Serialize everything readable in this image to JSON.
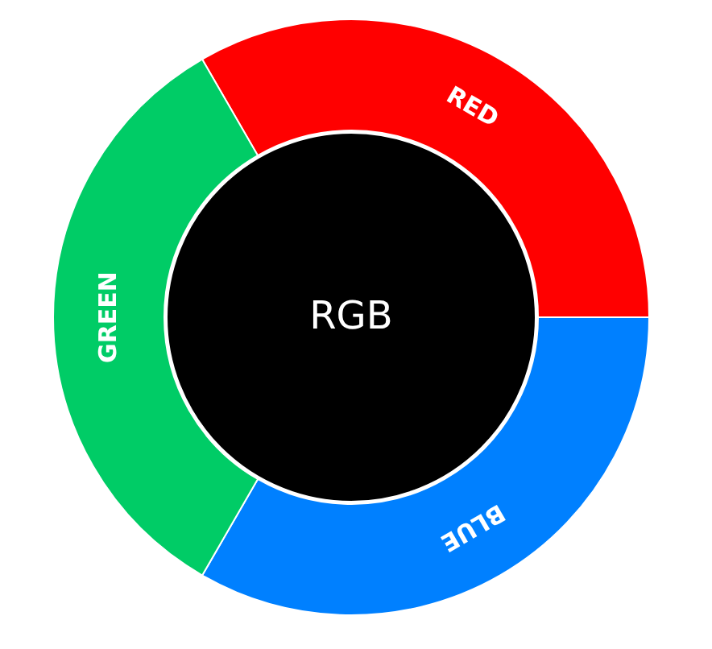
{
  "chart_data": {
    "type": "donut",
    "categories": [
      "RED",
      "BLUE",
      "GREEN"
    ],
    "values": [
      33.33,
      33.33,
      33.34
    ],
    "colors": [
      "#ff0000",
      "#0080ff",
      "#00cc66"
    ],
    "annotations": [
      "RGB"
    ]
  }
}
